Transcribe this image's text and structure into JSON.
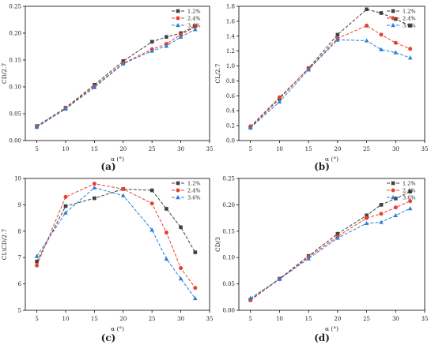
{
  "figure": {
    "colors": {
      "1.2%": "#404040",
      "2.4%": "#e8412e",
      "3.6%": "#2b7fd9"
    },
    "markers": {
      "1.2%": "square",
      "2.4%": "circle",
      "3.6%": "triangle"
    }
  },
  "chart_data": [
    {
      "panel": "(a)",
      "type": "line",
      "ylabel": "CD/2.7",
      "xlabel": "α (°)",
      "xlim": [
        3,
        35
      ],
      "ylim": [
        0,
        0.25
      ],
      "xticks": [
        5,
        10,
        15,
        20,
        25,
        30,
        35
      ],
      "yticks": [
        0.0,
        0.05,
        0.1,
        0.15,
        0.2,
        0.25
      ],
      "ytick_labels": [
        "0.00",
        "0.05",
        "0.10",
        "0.15",
        "0.20",
        "0.25"
      ],
      "legend_position": "top-right",
      "grid": false,
      "series": [
        {
          "name": "1.2%",
          "x": [
            5,
            10,
            15,
            20,
            25,
            27.5,
            30,
            32.5
          ],
          "y": [
            0.027,
            0.061,
            0.104,
            0.148,
            0.184,
            0.193,
            0.2,
            0.213
          ]
        },
        {
          "name": "2.4%",
          "x": [
            5,
            10,
            15,
            20,
            25,
            27.5,
            30,
            32.5
          ],
          "y": [
            0.026,
            0.06,
            0.101,
            0.144,
            0.17,
            0.18,
            0.197,
            0.212
          ]
        },
        {
          "name": "3.6%",
          "x": [
            5,
            10,
            15,
            20,
            25,
            27.5,
            30,
            32.5
          ],
          "y": [
            0.025,
            0.059,
            0.099,
            0.143,
            0.167,
            0.176,
            0.193,
            0.207
          ]
        }
      ]
    },
    {
      "panel": "(b)",
      "type": "line",
      "ylabel": "CL/2.7",
      "xlabel": "α (°)",
      "xlim": [
        3,
        35
      ],
      "ylim": [
        0,
        1.8
      ],
      "xticks": [
        5,
        10,
        15,
        20,
        25,
        30,
        35
      ],
      "yticks": [
        0.0,
        0.2,
        0.4,
        0.6,
        0.8,
        1.0,
        1.2,
        1.4,
        1.6,
        1.8
      ],
      "ytick_labels": [
        "0.0",
        "0.2",
        "0.4",
        "0.6",
        "0.8",
        "1.0",
        "1.2",
        "1.4",
        "1.6",
        "1.8"
      ],
      "legend_position": "top-right",
      "grid": false,
      "series": [
        {
          "name": "1.2%",
          "x": [
            5,
            10,
            15,
            20,
            25,
            27.5,
            30,
            32.5
          ],
          "y": [
            0.18,
            0.56,
            0.97,
            1.42,
            1.76,
            1.71,
            1.63,
            1.54
          ]
        },
        {
          "name": "2.4%",
          "x": [
            5,
            10,
            15,
            20,
            25,
            27.5,
            30,
            32.5
          ],
          "y": [
            0.19,
            0.58,
            0.96,
            1.37,
            1.54,
            1.42,
            1.31,
            1.23
          ]
        },
        {
          "name": "3.6%",
          "x": [
            5,
            10,
            15,
            20,
            25,
            27.5,
            30,
            32.5
          ],
          "y": [
            0.17,
            0.52,
            0.95,
            1.35,
            1.34,
            1.22,
            1.18,
            1.11
          ]
        }
      ]
    },
    {
      "panel": "(c)",
      "type": "line",
      "ylabel": "CL\\CD/2.7",
      "xlabel": "α (°)",
      "xlim": [
        3,
        35
      ],
      "ylim": [
        5,
        10
      ],
      "xticks": [
        5,
        10,
        15,
        20,
        25,
        30,
        35
      ],
      "yticks": [
        5,
        6,
        7,
        8,
        9,
        10
      ],
      "ytick_labels": [
        "5",
        "6",
        "7",
        "8",
        "9",
        "10"
      ],
      "legend_position": "top-right",
      "grid": false,
      "series": [
        {
          "name": "1.2%",
          "x": [
            5,
            10,
            15,
            20,
            25,
            27.5,
            30,
            32.5
          ],
          "y": [
            6.85,
            8.95,
            9.25,
            9.6,
            9.55,
            8.85,
            8.15,
            7.2
          ]
        },
        {
          "name": "2.4%",
          "x": [
            5,
            10,
            15,
            20,
            25,
            27.5,
            30,
            32.5
          ],
          "y": [
            6.7,
            9.3,
            9.8,
            9.6,
            9.05,
            7.95,
            6.6,
            5.85
          ]
        },
        {
          "name": "3.6%",
          "x": [
            5,
            10,
            15,
            20,
            25,
            27.5,
            30,
            32.5
          ],
          "y": [
            7.05,
            8.7,
            9.65,
            9.35,
            8.05,
            6.95,
            6.2,
            5.45
          ]
        }
      ]
    },
    {
      "panel": "(d)",
      "type": "line",
      "ylabel": "CD/3",
      "xlabel": "α (°)",
      "xlim": [
        3,
        35
      ],
      "ylim": [
        0,
        0.25
      ],
      "xticks": [
        5,
        10,
        15,
        20,
        25,
        30,
        35
      ],
      "yticks": [
        0.0,
        0.05,
        0.1,
        0.15,
        0.2,
        0.25
      ],
      "ytick_labels": [
        "0.00",
        "0.05",
        "0.10",
        "0.15",
        "0.20",
        "0.25"
      ],
      "legend_position": "top-right",
      "grid": false,
      "series": [
        {
          "name": "1.2%",
          "x": [
            5,
            10,
            15,
            20,
            25,
            27.5,
            30,
            32.5
          ],
          "y": [
            0.02,
            0.06,
            0.103,
            0.145,
            0.18,
            0.2,
            0.212,
            0.225
          ]
        },
        {
          "name": "2.4%",
          "x": [
            5,
            10,
            15,
            20,
            25,
            27.5,
            30,
            32.5
          ],
          "y": [
            0.019,
            0.059,
            0.101,
            0.14,
            0.175,
            0.183,
            0.195,
            0.207
          ]
        },
        {
          "name": "3.6%",
          "x": [
            5,
            10,
            15,
            20,
            25,
            27.5,
            30,
            32.5
          ],
          "y": [
            0.023,
            0.059,
            0.098,
            0.137,
            0.165,
            0.167,
            0.18,
            0.193
          ]
        }
      ]
    }
  ]
}
